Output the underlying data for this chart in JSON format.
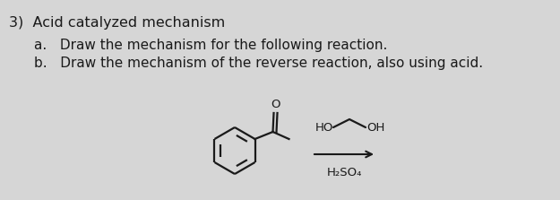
{
  "title": "3)  Acid catalyzed mechanism",
  "line_a": "a.   Draw the mechanism for the following reaction.",
  "line_b": "b.   Draw the mechanism of the reverse reaction, also using acid.",
  "background_color": "#d6d6d6",
  "text_color": "#1a1a1a",
  "title_fontsize": 11.5,
  "body_fontsize": 11.0,
  "arrow_label": "H₂SO₄",
  "diol_label_left": "HO",
  "diol_label_right": "OH"
}
